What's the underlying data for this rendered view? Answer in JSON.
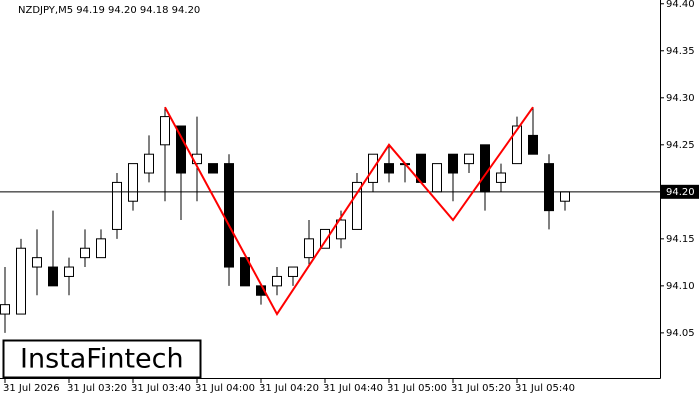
{
  "chart_data": {
    "type": "candlestick",
    "header": "NZDJPY,M5  94.19 94.20 94.18 94.20",
    "logo": "InstaFintech",
    "categories": [
      "31 Jul 2026",
      null,
      null,
      null,
      "31 Jul 03:20",
      null,
      null,
      null,
      "31 Jul 03:40",
      null,
      null,
      null,
      "31 Jul 04:00",
      null,
      null,
      null,
      "31 Jul 04:20",
      null,
      null,
      null,
      "31 Jul 04:40",
      null,
      null,
      null,
      "31 Jul 05:00",
      null,
      null,
      null,
      "31 Jul 05:20",
      null,
      null,
      null,
      "31 Jul 05:40",
      null,
      null,
      null
    ],
    "open": [
      94.07,
      94.07,
      94.12,
      94.12,
      94.11,
      94.13,
      94.13,
      94.16,
      94.19,
      94.22,
      94.25,
      94.27,
      94.23,
      94.23,
      94.23,
      94.13,
      94.1,
      94.1,
      94.11,
      94.13,
      94.14,
      94.15,
      94.16,
      94.21,
      94.23,
      94.23,
      94.24,
      94.2,
      94.24,
      94.23,
      94.25,
      94.21,
      94.23,
      94.26,
      94.23,
      94.19
    ],
    "high": [
      94.12,
      94.15,
      94.16,
      94.18,
      94.13,
      94.16,
      94.16,
      94.22,
      94.23,
      94.26,
      94.29,
      94.27,
      94.28,
      94.23,
      94.24,
      94.13,
      94.1,
      94.12,
      94.12,
      94.17,
      94.16,
      94.18,
      94.22,
      94.24,
      94.25,
      94.23,
      94.24,
      94.23,
      94.24,
      94.24,
      94.25,
      94.23,
      94.28,
      94.29,
      94.24,
      94.2
    ],
    "low": [
      94.05,
      94.07,
      94.09,
      94.1,
      94.09,
      94.12,
      94.13,
      94.15,
      94.18,
      94.21,
      94.19,
      94.17,
      94.19,
      94.22,
      94.1,
      94.1,
      94.08,
      94.09,
      94.1,
      94.12,
      94.14,
      94.14,
      94.16,
      94.2,
      94.21,
      94.21,
      94.21,
      94.2,
      94.19,
      94.22,
      94.18,
      94.2,
      94.23,
      94.24,
      94.16,
      94.18
    ],
    "close": [
      94.08,
      94.14,
      94.13,
      94.1,
      94.12,
      94.14,
      94.15,
      94.21,
      94.23,
      94.24,
      94.28,
      94.22,
      94.24,
      94.22,
      94.12,
      94.1,
      94.09,
      94.11,
      94.12,
      94.15,
      94.16,
      94.17,
      94.21,
      94.24,
      94.22,
      94.23,
      94.21,
      94.23,
      94.22,
      94.24,
      94.2,
      94.22,
      94.27,
      94.24,
      94.18,
      94.2
    ],
    "up_color": "#ffffff",
    "down_color": "#000000",
    "ylim": [
      94.002,
      94.404
    ],
    "yticks": [
      {
        "value": 94.05,
        "label": "94.05"
      },
      {
        "value": 94.1,
        "label": "94.10"
      },
      {
        "value": 94.15,
        "label": "94.15"
      },
      {
        "value": 94.2,
        "label": "94.20"
      },
      {
        "value": 94.25,
        "label": "94.25"
      },
      {
        "value": 94.3,
        "label": "94.30"
      },
      {
        "value": 94.35,
        "label": "94.35"
      },
      {
        "value": 94.4,
        "label": "94.40"
      }
    ],
    "current_price": {
      "value": 94.2,
      "label": "94.20"
    },
    "pattern": {
      "color": "#ff0000",
      "x": [
        10,
        17,
        24,
        28,
        33
      ],
      "y": [
        94.29,
        94.07,
        94.25,
        94.17,
        94.29
      ]
    }
  }
}
